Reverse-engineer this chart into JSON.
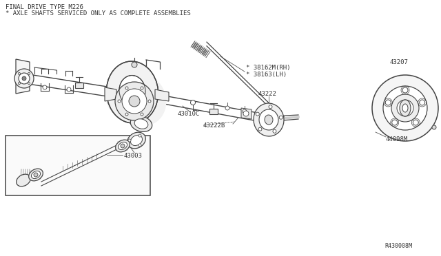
{
  "title_line1": "FINAL DRIVE TYPE M226",
  "title_line2": "* AXLE SHAFTS SERVICED ONLY AS COMPLETE ASSEMBLIES",
  "bg_color": "#ffffff",
  "lc": "#444444",
  "tc": "#333333",
  "ref_number": "R430008M",
  "labels": {
    "38162M_RH": "* 38162M(RH)",
    "38163_LH": "* 38163(LH)",
    "43222": "43222",
    "43207": "43207",
    "43010C": "43010C",
    "43222B": "43222B",
    "44098M": "44098M",
    "43003": "43003"
  },
  "figsize": [
    6.4,
    3.72
  ],
  "dpi": 100
}
